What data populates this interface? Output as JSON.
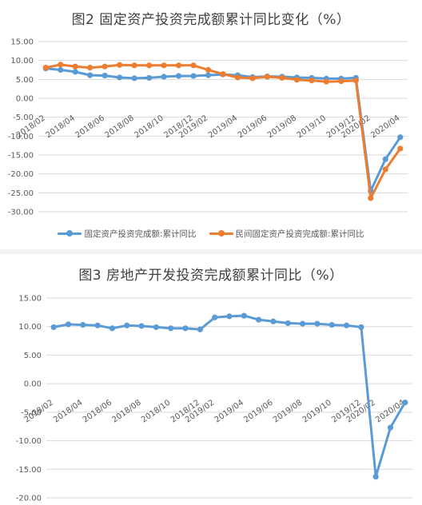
{
  "chart_data": [
    {
      "type": "line",
      "title": "图2 固定资产投资完成额累计同比变化（%）",
      "ylim": [
        -30,
        15
      ],
      "yticks": [
        "15.00",
        "10.00",
        "5.00",
        "0.00",
        "-5.00",
        "-10.00",
        "-15.00",
        "-20.00",
        "-25.00",
        "-30.00"
      ],
      "xtick_labels": [
        "2018/02",
        "2018/04",
        "2018/06",
        "2018/08",
        "2018/10",
        "2018/12",
        "2019/02",
        "2019/04",
        "2019/06",
        "2019/08",
        "2019/10",
        "2019/12",
        "2020/02",
        "2020/04"
      ],
      "categories": [
        "2018/02",
        "2018/03",
        "2018/04",
        "2018/05",
        "2018/06",
        "2018/07",
        "2018/08",
        "2018/09",
        "2018/10",
        "2018/11",
        "2018/12",
        "2019/02",
        "2019/03",
        "2019/04",
        "2019/05",
        "2019/06",
        "2019/07",
        "2019/08",
        "2019/09",
        "2019/10",
        "2019/11",
        "2019/12",
        "2020/02",
        "2020/03",
        "2020/04"
      ],
      "grid": true,
      "legend_position": "bottom",
      "series": [
        {
          "name": "固定资产投资完成额:累计同比",
          "color": "#5b9bd5",
          "values": [
            7.9,
            7.5,
            7.0,
            6.1,
            6.0,
            5.5,
            5.3,
            5.4,
            5.7,
            5.9,
            5.9,
            6.1,
            6.3,
            6.1,
            5.6,
            5.8,
            5.7,
            5.5,
            5.4,
            5.2,
            5.2,
            5.4,
            -24.5,
            -16.1,
            -10.3
          ]
        },
        {
          "name": "民间固定资产投资完成额:累计同比",
          "color": "#ed7d31",
          "values": [
            8.1,
            8.9,
            8.4,
            8.1,
            8.4,
            8.8,
            8.7,
            8.7,
            8.7,
            8.7,
            8.7,
            7.5,
            6.4,
            5.5,
            5.3,
            5.7,
            5.4,
            4.9,
            4.7,
            4.4,
            4.5,
            4.7,
            -26.4,
            -18.8,
            -13.3
          ]
        }
      ]
    },
    {
      "type": "line",
      "title": "图3 房地产开发投资完成额累计同比（%）",
      "ylim": [
        -20,
        15
      ],
      "yticks": [
        "15.00",
        "10.00",
        "5.00",
        "0.00",
        "-5.00",
        "-10.00",
        "-15.00",
        "-20.00"
      ],
      "xtick_labels": [
        "2018/02",
        "2018/04",
        "2018/06",
        "2018/08",
        "2018/10",
        "2018/12",
        "2019/02",
        "2019/04",
        "2019/06",
        "2019/08",
        "2019/10",
        "2019/12",
        "2020/02",
        "2020/04"
      ],
      "categories": [
        "2018/02",
        "2018/03",
        "2018/04",
        "2018/05",
        "2018/06",
        "2018/07",
        "2018/08",
        "2018/09",
        "2018/10",
        "2018/11",
        "2018/12",
        "2019/02",
        "2019/03",
        "2019/04",
        "2019/05",
        "2019/06",
        "2019/07",
        "2019/08",
        "2019/09",
        "2019/10",
        "2019/11",
        "2019/12",
        "2020/02",
        "2020/03",
        "2020/04"
      ],
      "grid": true,
      "series": [
        {
          "color": "#5b9bd5",
          "values": [
            9.9,
            10.4,
            10.3,
            10.2,
            9.7,
            10.2,
            10.1,
            9.9,
            9.7,
            9.7,
            9.5,
            11.6,
            11.8,
            11.9,
            11.2,
            10.9,
            10.6,
            10.5,
            10.5,
            10.3,
            10.2,
            9.9,
            -16.3,
            -7.7,
            -3.3
          ]
        }
      ]
    }
  ]
}
